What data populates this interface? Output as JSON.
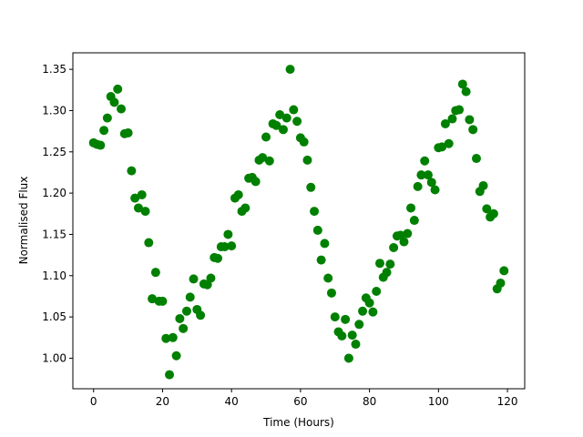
{
  "chart_data": {
    "type": "scatter",
    "xlabel": "Time (Hours)",
    "ylabel": "Normalised Flux",
    "xlim": [
      -6,
      125
    ],
    "ylim": [
      0.963,
      1.37
    ],
    "xticks": [
      0,
      20,
      40,
      60,
      80,
      100,
      120
    ],
    "yticks": [
      1.0,
      1.05,
      1.1,
      1.15,
      1.2,
      1.25,
      1.3,
      1.35
    ],
    "xtick_labels": [
      "0",
      "20",
      "40",
      "60",
      "80",
      "100",
      "120"
    ],
    "ytick_labels": [
      "1.00",
      "1.05",
      "1.10",
      "1.15",
      "1.20",
      "1.25",
      "1.30",
      "1.35"
    ],
    "grid": false,
    "marker_color": "#008000",
    "series": [
      {
        "x": [
          0,
          1,
          2,
          3,
          4,
          5,
          6,
          7,
          8,
          9,
          10,
          11,
          12,
          13,
          14,
          15,
          16,
          17,
          18,
          19,
          20,
          21,
          22,
          23,
          24,
          25,
          26,
          27,
          28,
          29,
          30,
          31,
          32,
          33,
          34,
          35,
          36,
          37,
          38,
          39,
          40,
          41,
          42,
          43,
          44,
          45,
          46,
          47,
          48,
          49,
          50,
          51,
          52,
          53,
          54,
          55,
          56,
          57,
          58,
          59,
          60,
          61,
          62,
          63,
          64,
          65,
          66,
          67,
          68,
          69,
          70,
          71,
          72,
          73,
          74,
          75,
          76,
          77,
          78,
          79,
          80,
          81,
          82,
          83,
          84,
          85,
          86,
          87,
          88,
          89,
          90,
          91,
          92,
          93,
          94,
          95,
          96,
          97,
          98,
          99,
          100,
          101,
          102,
          103,
          104,
          105,
          106,
          107,
          108,
          109,
          110,
          111,
          112,
          113,
          114,
          115,
          116,
          117,
          118,
          119
        ],
        "y": [
          1.261,
          1.259,
          1.258,
          1.276,
          1.291,
          1.317,
          1.31,
          1.326,
          1.302,
          1.272,
          1.273,
          1.227,
          1.194,
          1.182,
          1.198,
          1.178,
          1.14,
          1.072,
          1.104,
          1.069,
          1.069,
          1.024,
          0.98,
          1.025,
          1.003,
          1.048,
          1.036,
          1.057,
          1.074,
          1.096,
          1.059,
          1.052,
          1.09,
          1.089,
          1.097,
          1.122,
          1.121,
          1.135,
          1.135,
          1.15,
          1.136,
          1.194,
          1.198,
          1.178,
          1.182,
          1.218,
          1.219,
          1.214,
          1.24,
          1.243,
          1.268,
          1.239,
          1.284,
          1.282,
          1.295,
          1.277,
          1.291,
          1.35,
          1.301,
          1.287,
          1.267,
          1.262,
          1.24,
          1.207,
          1.178,
          1.155,
          1.119,
          1.139,
          1.097,
          1.079,
          1.05,
          1.032,
          1.027,
          1.047,
          1.0,
          1.028,
          1.017,
          1.041,
          1.057,
          1.073,
          1.067,
          1.056,
          1.081,
          1.115,
          1.098,
          1.104,
          1.114,
          1.134,
          1.148,
          1.149,
          1.141,
          1.151,
          1.182,
          1.167,
          1.208,
          1.222,
          1.239,
          1.222,
          1.213,
          1.204,
          1.255,
          1.256,
          1.284,
          1.26,
          1.29,
          1.3,
          1.301,
          1.332,
          1.323,
          1.289,
          1.277,
          1.242,
          1.202,
          1.209,
          1.181,
          1.171,
          1.175,
          1.084,
          1.091,
          1.106
        ]
      }
    ]
  }
}
